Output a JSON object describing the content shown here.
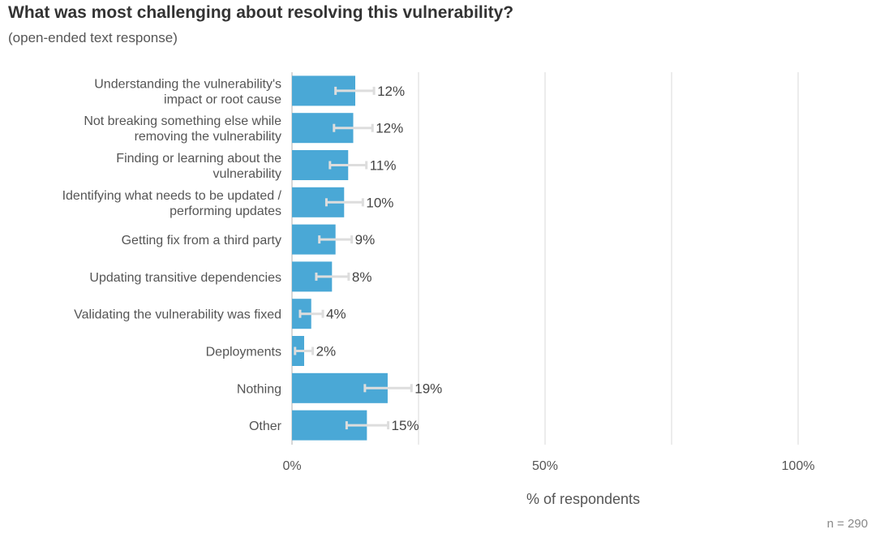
{
  "chart_data": {
    "type": "bar",
    "orientation": "horizontal",
    "title": "What was most challenging about resolving this vulnerability?",
    "subtitle": "(open-ended text response)",
    "xlabel": "% of respondents",
    "xlim": [
      0,
      100
    ],
    "xticks": [
      0,
      50,
      100
    ],
    "xtick_labels": [
      "0%",
      "50%",
      "100%"
    ],
    "gridlines": [
      0,
      25,
      50,
      75,
      100
    ],
    "note": "n =  290",
    "bar_color": "#4aa8d6",
    "errorbar_color": "#dddddd",
    "categories": [
      [
        "Understanding the vulnerability's",
        "impact or root cause"
      ],
      [
        "Not breaking something else while",
        "removing the vulnerability"
      ],
      [
        "Finding or learning about the",
        "vulnerability"
      ],
      [
        "Identifying what needs to be updated /",
        "performing updates"
      ],
      [
        "Getting fix from a third party"
      ],
      [
        "Updating transitive dependencies"
      ],
      [
        "Validating the vulnerability was fixed"
      ],
      [
        "Deployments"
      ],
      [
        "Nothing"
      ],
      [
        "Other"
      ]
    ],
    "values": [
      12.5,
      12.1,
      11.1,
      10.3,
      8.6,
      7.9,
      3.8,
      2.4,
      18.9,
      14.8
    ],
    "labels": [
      "12%",
      "12%",
      "11%",
      "10%",
      "9%",
      "8%",
      "4%",
      "2%",
      "19%",
      "15%"
    ],
    "error_low": [
      8.6,
      8.3,
      7.5,
      6.8,
      5.4,
      4.8,
      1.6,
      0.6,
      14.4,
      10.8
    ],
    "error_high": [
      16.2,
      15.9,
      14.7,
      14.0,
      11.8,
      11.2,
      6.1,
      4.1,
      23.6,
      19.0
    ]
  }
}
